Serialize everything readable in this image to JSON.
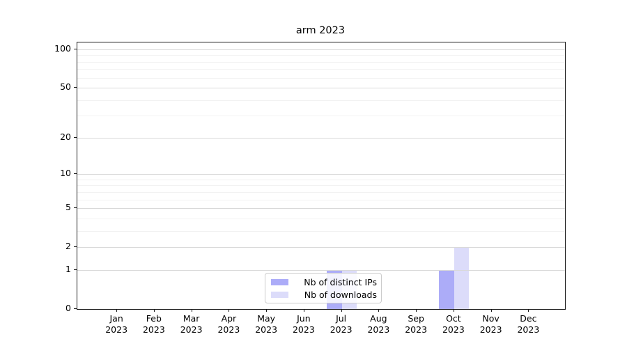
{
  "figure": {
    "background_color": "#ffffff"
  },
  "chart_data": {
    "type": "bar",
    "title": "arm 2023",
    "categories": [
      "Jan",
      "Feb",
      "Mar",
      "Apr",
      "May",
      "Jun",
      "Jul",
      "Aug",
      "Sep",
      "Oct",
      "Nov",
      "Dec"
    ],
    "category_second_line": "2023",
    "series": [
      {
        "name": "Nb of distinct IPs",
        "color": "#acacf8",
        "values": [
          0,
          0,
          0,
          0,
          0,
          0,
          1,
          0,
          0,
          1,
          0,
          0
        ]
      },
      {
        "name": "Nb of downloads",
        "color": "#dcdcfa",
        "values": [
          0,
          0,
          0,
          0,
          0,
          0,
          1,
          0,
          0,
          2,
          0,
          0
        ]
      }
    ],
    "xlabel": "",
    "ylabel": "",
    "y_scale": "log1p",
    "y_ticks_major": [
      0,
      1,
      2,
      5,
      10,
      20,
      50,
      100
    ],
    "y_ticks_minor": [
      3,
      4,
      6,
      7,
      8,
      9,
      30,
      40,
      60,
      70,
      80,
      90
    ],
    "ylim": [
      0,
      113
    ],
    "grid": "on",
    "legend_position": "lower-center-inside",
    "colors": {
      "grid_major": "#d9d9d9",
      "grid_minor": "#f2f2f2",
      "spine": "#1a1a1a",
      "text": "#000000",
      "legend_border": "#cccccc"
    }
  }
}
